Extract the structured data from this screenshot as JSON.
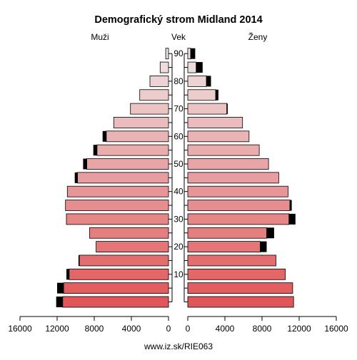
{
  "chart_data": {
    "type": "bar",
    "title": "Demografický strom Midland 2014",
    "left_label": "Muži",
    "center_label": "Vek",
    "right_label": "Ženy",
    "footer": "www.iz.sk/RIE063",
    "age_groups": [
      "0-4",
      "5-9",
      "10-14",
      "15-19",
      "20-24",
      "25-29",
      "30-34",
      "35-39",
      "40-44",
      "45-49",
      "50-54",
      "55-59",
      "60-64",
      "65-69",
      "70-74",
      "75-79",
      "80-84",
      "85-89",
      "90+"
    ],
    "age_ticks": [
      10,
      20,
      30,
      40,
      50,
      60,
      70,
      80,
      90
    ],
    "x_ticks": [
      "16000",
      "12000",
      "8000",
      "4000",
      "0",
      "4000",
      "8000",
      "12000",
      "16000"
    ],
    "xlim": [
      0,
      16000
    ],
    "series": [
      {
        "name": "Muži",
        "values": [
          11400,
          11300,
          10700,
          9600,
          7800,
          8500,
          11000,
          11100,
          10900,
          9800,
          8800,
          7700,
          6700,
          5900,
          4100,
          3100,
          2000,
          900,
          300
        ],
        "excess": [
          700,
          700,
          300,
          100,
          0,
          0,
          0,
          0,
          0,
          300,
          400,
          400,
          400,
          0,
          0,
          0,
          0,
          0,
          0
        ]
      },
      {
        "name": "Ženy",
        "values": [
          11400,
          11300,
          10500,
          9500,
          7800,
          8500,
          10900,
          11000,
          10800,
          9800,
          8700,
          7700,
          6600,
          5900,
          4200,
          3000,
          2000,
          900,
          300
        ],
        "excess": [
          0,
          0,
          0,
          0,
          700,
          800,
          700,
          200,
          0,
          0,
          0,
          0,
          0,
          0,
          100,
          300,
          500,
          700,
          500
        ]
      }
    ],
    "colors": {
      "base": "#e15759",
      "light": "#efe3e3",
      "excess": "#000000",
      "stroke": "#000000"
    }
  }
}
